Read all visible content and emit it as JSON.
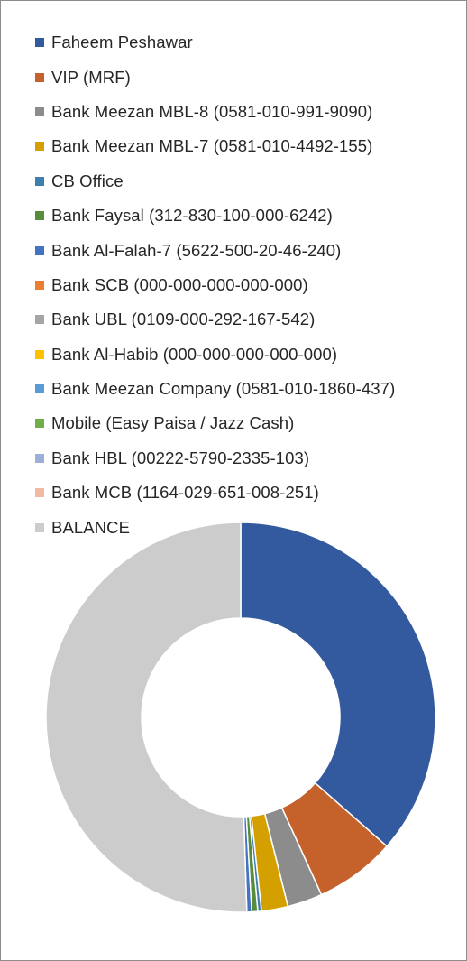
{
  "chart_data": {
    "type": "pie",
    "variant": "doughnut",
    "title": "",
    "legend_position": "top",
    "series": [
      {
        "name": "Faheem Peshawar",
        "value": 36.5,
        "color": "#335a9f"
      },
      {
        "name": "VIP (MRF)",
        "value": 6.7,
        "color": "#c5612b"
      },
      {
        "name": "Bank Meezan MBL-8 (0581-010-991-9090)",
        "value": 2.9,
        "color": "#8c8c8c"
      },
      {
        "name": "Bank Meezan MBL-7 (0581-010-4492-155)",
        "value": 2.2,
        "color": "#d4a000"
      },
      {
        "name": "CB Office",
        "value": 0.3,
        "color": "#3f7fb0"
      },
      {
        "name": "Bank Faysal (312-830-100-000-6242)",
        "value": 0.5,
        "color": "#568c3a"
      },
      {
        "name": "Bank Al-Falah-7 (5622-500-20-46-240)",
        "value": 0.4,
        "color": "#4472c4"
      },
      {
        "name": "Bank SCB (000-000-000-000-000)",
        "value": 0.0,
        "color": "#ed7d31"
      },
      {
        "name": "Bank UBL (0109-000-292-167-542)",
        "value": 0.0,
        "color": "#a5a5a5"
      },
      {
        "name": "Bank Al-Habib (000-000-000-000-000)",
        "value": 0.0,
        "color": "#ffc000"
      },
      {
        "name": "Bank Meezan Company (0581-010-1860-437)",
        "value": 0.0,
        "color": "#5b9bd5"
      },
      {
        "name": "Mobile (Easy Paisa / Jazz Cash)",
        "value": 0.0,
        "color": "#70ad47"
      },
      {
        "name": "Bank HBL (00222-5790-2335-103)",
        "value": 0.0,
        "color": "#9dafd8"
      },
      {
        "name": "Bank MCB (1164-029-651-008-251)",
        "value": 0.0,
        "color": "#f4b9a2"
      },
      {
        "name": "BALANCE",
        "value": 50.5,
        "color": "#cccccc"
      }
    ]
  }
}
